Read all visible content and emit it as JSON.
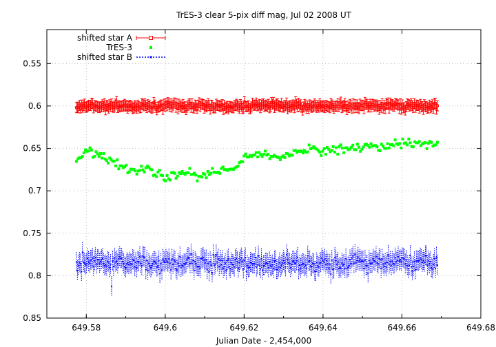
{
  "chart_data": {
    "type": "scatter",
    "title": "TrES-3 clear 5-pix diff mag, Jul 02 2008 UT",
    "xlabel": "Julian Date - 2,454,000",
    "ylabel": "",
    "xlim": [
      649.57,
      649.68
    ],
    "ylim": [
      0.85,
      0.51
    ],
    "y_inverted": true,
    "grid": true,
    "legend_position": "top-left",
    "x_ticks": [
      "649.58",
      "649.6",
      "649.62",
      "649.64",
      "649.66",
      "649.68"
    ],
    "x_tick_values": [
      649.58,
      649.6,
      649.62,
      649.64,
      649.66,
      649.68
    ],
    "y_ticks": [
      "0.55",
      "0.6",
      "0.65",
      "0.7",
      "0.75",
      "0.8",
      "0.85"
    ],
    "y_tick_values": [
      0.55,
      0.6,
      0.65,
      0.7,
      0.75,
      0.8,
      0.85
    ],
    "series": [
      {
        "name": "shifted star A",
        "color": "#ff0000",
        "marker": "open-square-with-errorbars",
        "x_range": [
          649.5775,
          649.669
        ],
        "mean": 0.6,
        "scatter": 0.004,
        "errorbar": 0.006,
        "n_points": 360
      },
      {
        "name": "TrES-3",
        "color": "#00ff00",
        "marker": "filled-square",
        "x": [
          649.5775,
          649.58,
          649.583,
          649.586,
          649.589,
          649.592,
          649.595,
          649.598,
          649.6,
          649.603,
          649.606,
          649.609,
          649.612,
          649.615,
          649.618,
          649.62,
          649.624,
          649.628,
          649.632,
          649.636,
          649.64,
          649.645,
          649.65,
          649.655,
          649.66,
          649.665,
          649.669
        ],
        "y": [
          0.666,
          0.652,
          0.657,
          0.664,
          0.672,
          0.676,
          0.674,
          0.678,
          0.686,
          0.68,
          0.678,
          0.684,
          0.677,
          0.675,
          0.672,
          0.662,
          0.656,
          0.661,
          0.658,
          0.652,
          0.653,
          0.65,
          0.648,
          0.648,
          0.645,
          0.644,
          0.644
        ],
        "scatter": 0.005,
        "n_points": 240
      },
      {
        "name": "shifted star B",
        "color": "#0000ff",
        "marker": "small-dot-with-errorbars",
        "x_range": [
          649.5775,
          649.669
        ],
        "mean": 0.785,
        "scatter": 0.01,
        "errorbar": 0.012,
        "n_points": 360
      }
    ]
  }
}
